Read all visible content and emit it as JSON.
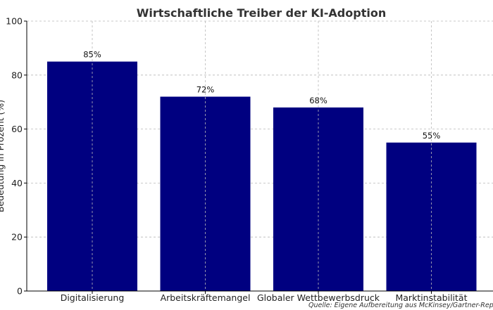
{
  "chart_data": {
    "type": "bar",
    "title": "Wirtschaftliche Treiber der KI-Adoption",
    "xlabel": "",
    "ylabel": "Bedeutung in Prozent (%)",
    "categories": [
      "Digitalisierung",
      "Arbeitskräftemangel",
      "Globaler Wettbewerbsdruck",
      "Marktinstabilität"
    ],
    "values": [
      85,
      72,
      68,
      55
    ],
    "data_labels": [
      "85%",
      "72%",
      "68%",
      "55%"
    ],
    "ylim": [
      0,
      100
    ],
    "yticks": [
      0,
      20,
      40,
      60,
      80,
      100
    ],
    "grid": true,
    "bar_color": "#000080",
    "source": "Quelle: Eigene Aufbereitung aus McKinsey/Gartner-Reports"
  }
}
